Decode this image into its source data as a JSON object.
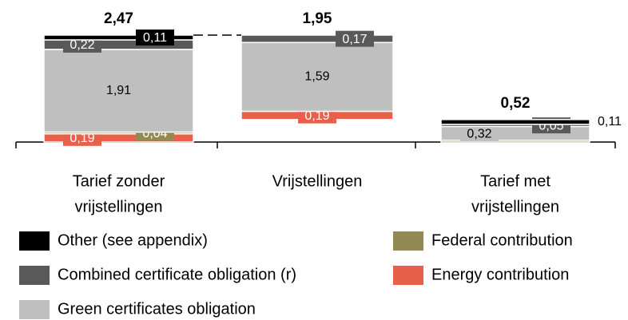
{
  "chart_data": {
    "type": "waterfall",
    "categories": [
      [
        "Tarief zonder",
        "vrijstellingen"
      ],
      [
        "Vrijstellingen"
      ],
      [
        "Tarief met",
        "vrijstellingen"
      ]
    ],
    "totals": [
      2.47,
      1.95,
      0.52
    ],
    "total_labels": [
      "2,47",
      "1,95",
      "0,52"
    ],
    "series": [
      {
        "name": "Energy contribution",
        "color": "#e8604c",
        "values": [
          0.19,
          0.19,
          0
        ],
        "value_labels": [
          "0,19",
          "0,19",
          null
        ]
      },
      {
        "name": "Federal contribution",
        "color": "#938953",
        "values": [
          0.04,
          0,
          0.04
        ],
        "value_labels": [
          "0,04",
          null,
          null
        ]
      },
      {
        "name": "Green certificates obligation",
        "color": "#bfbfbf",
        "values": [
          1.91,
          1.59,
          0.32
        ],
        "value_labels": [
          "1,91",
          "1,59",
          "0,32"
        ]
      },
      {
        "name": "Combined certificate obligation (r)",
        "color": "#595959",
        "values": [
          0.22,
          0.17,
          0.05
        ],
        "value_labels": [
          "0,22",
          "0,17",
          "0,05"
        ]
      },
      {
        "name": "Other (see appendix)",
        "color": "#000000",
        "values": [
          0.11,
          0,
          0.11
        ],
        "value_labels": [
          "0,11",
          null,
          "0,11"
        ]
      }
    ],
    "ylim": [
      0,
      2.47
    ]
  }
}
